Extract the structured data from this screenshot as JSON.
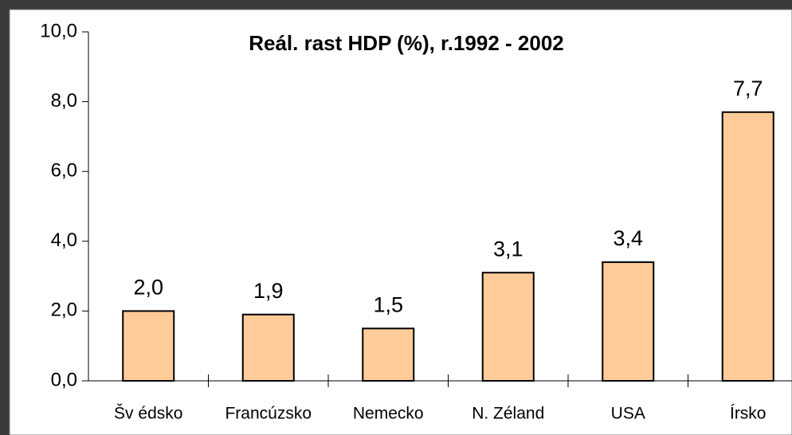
{
  "chart_data": {
    "type": "bar",
    "title": "Reál. rast HDP (%), r.1992 - 2002",
    "categories": [
      "Šv édsko",
      "Francúzsko",
      "Nemecko",
      "N. Zéland",
      "USA",
      "Írsko"
    ],
    "values": [
      2.0,
      1.9,
      1.5,
      3.1,
      3.4,
      7.7
    ],
    "value_labels": [
      "2,0",
      "1,9",
      "1,5",
      "3,1",
      "3,4",
      "7,7"
    ],
    "color": "#ffcc99",
    "ylim": [
      0,
      10
    ],
    "yticks": [
      {
        "value": 0,
        "label": "0,0"
      },
      {
        "value": 2,
        "label": "2,0"
      },
      {
        "value": 4,
        "label": "4,0"
      },
      {
        "value": 6,
        "label": "6,0"
      },
      {
        "value": 8,
        "label": "8,0"
      },
      {
        "value": 10,
        "label": "10,0"
      }
    ],
    "grid": false
  }
}
